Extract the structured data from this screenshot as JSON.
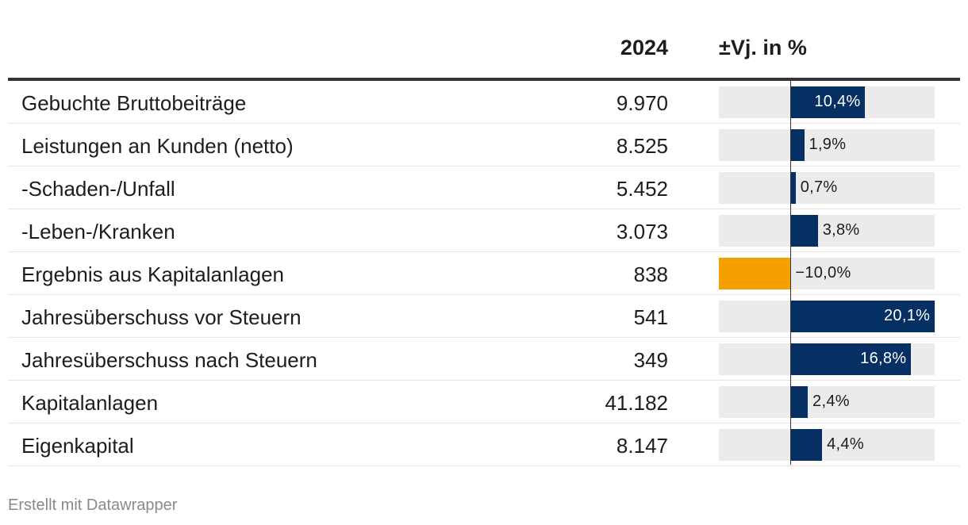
{
  "header": {
    "year_label": "2024",
    "change_label": "±Vj. in %"
  },
  "colors": {
    "positive": "#062f63",
    "negative": "#f5a000",
    "bar_background": "#ebebeb"
  },
  "chart_data": {
    "type": "table",
    "columns": [
      "",
      "2024",
      "±Vj. in %"
    ],
    "x_range": [
      -10,
      20.1
    ],
    "rows": [
      {
        "label": "Gebuchte Bruttobeiträge",
        "value": "9.970",
        "change": 10.4,
        "change_label": "10,4%"
      },
      {
        "label": "Leistungen an Kunden (netto)",
        "value": "8.525",
        "change": 1.9,
        "change_label": "1,9%"
      },
      {
        "label": "-Schaden-/Unfall",
        "value": "5.452",
        "change": 0.7,
        "change_label": "0,7%"
      },
      {
        "label": "-Leben-/Kranken",
        "value": "3.073",
        "change": 3.8,
        "change_label": "3,8%"
      },
      {
        "label": "Ergebnis aus Kapitalanlagen",
        "value": "838",
        "change": -10.0,
        "change_label": "−10,0%"
      },
      {
        "label": "Jahresüberschuss vor Steuern",
        "value": "541",
        "change": 20.1,
        "change_label": "20,1%"
      },
      {
        "label": "Jahresüberschuss nach Steuern",
        "value": "349",
        "change": 16.8,
        "change_label": "16,8%"
      },
      {
        "label": "Kapitalanlagen",
        "value": "41.182",
        "change": 2.4,
        "change_label": "2,4%"
      },
      {
        "label": "Eigenkapital",
        "value": "8.147",
        "change": 4.4,
        "change_label": "4,4%"
      }
    ]
  },
  "footer": {
    "credit": "Erstellt mit Datawrapper"
  }
}
